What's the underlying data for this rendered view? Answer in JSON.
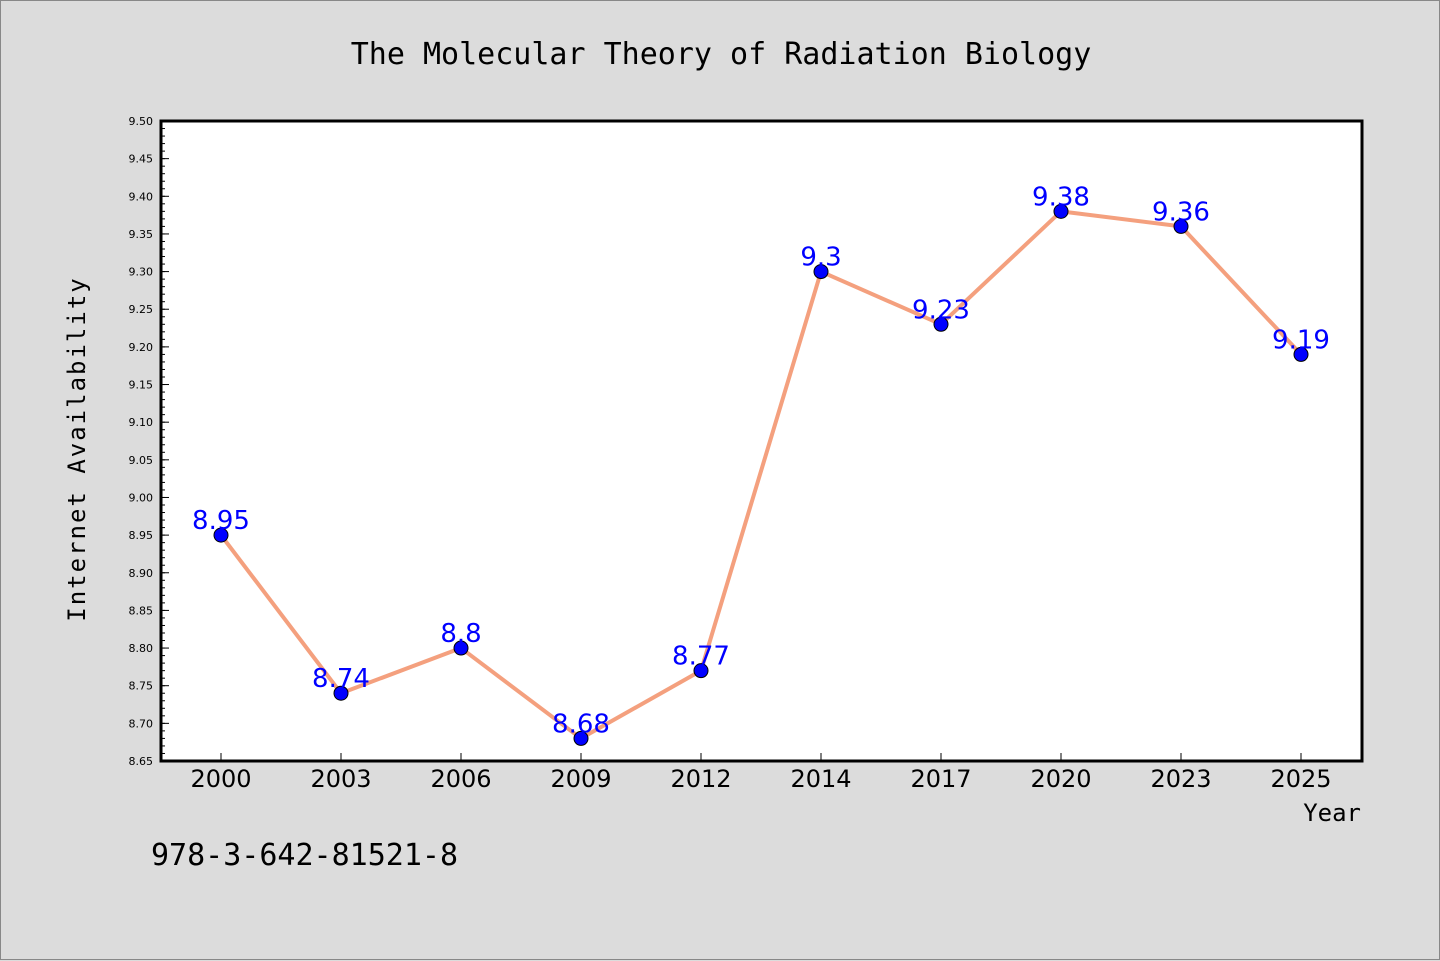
{
  "chart_data": {
    "type": "line",
    "title": "The Molecular Theory of Radiation Biology",
    "xlabel": "Year",
    "ylabel": "Internet Availability",
    "categories": [
      "2000",
      "2003",
      "2006",
      "2009",
      "2012",
      "2014",
      "2017",
      "2020",
      "2023",
      "2025"
    ],
    "series": [
      {
        "values": [
          8.95,
          8.74,
          8.8,
          8.68,
          8.77,
          9.3,
          9.23,
          9.38,
          9.36,
          9.19
        ],
        "data_labels": [
          "8.95",
          "8.74",
          "8.8",
          "8.68",
          "8.77",
          "9.3",
          "9.23",
          "9.38",
          "9.36",
          "9.19"
        ],
        "line_color": "#f4a07e",
        "marker_color": "#0000ff"
      }
    ],
    "ylim": [
      8.65,
      9.5
    ],
    "yticks": [
      "8.65",
      "8.70",
      "8.75",
      "8.80",
      "8.85",
      "8.90",
      "8.95",
      "9.00",
      "9.05",
      "9.10",
      "9.15",
      "9.20",
      "9.25",
      "9.30",
      "9.35",
      "9.40",
      "9.45",
      "9.50"
    ],
    "grid": false,
    "legend": "none"
  },
  "annotation": "978-3-642-81521-8",
  "colors": {
    "background": "#dcdcdc",
    "plot_background": "#ffffff",
    "line": "#f4a07e",
    "marker": "#0000ff",
    "data_label": "#0000ff"
  }
}
